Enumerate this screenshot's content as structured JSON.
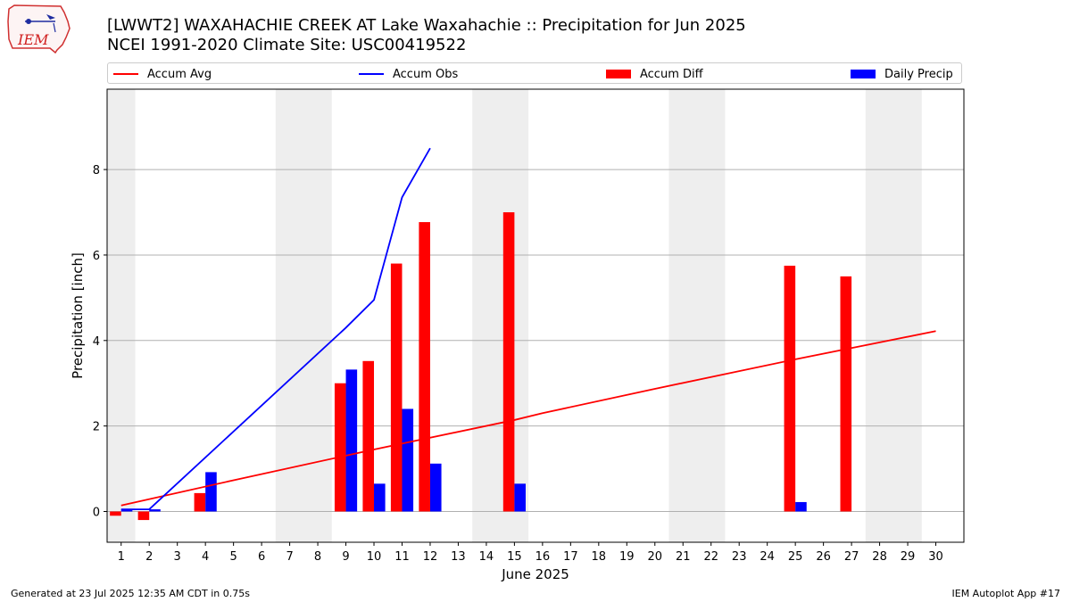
{
  "logo": {
    "text": "IEM",
    "icon": "iem-iowa-logo"
  },
  "title_line1": "[LWWT2] WAXAHACHIE CREEK  AT Lake Waxahachie :: Precipitation for Jun 2025",
  "title_line2": "NCEI 1991-2020 Climate Site: USC00419522",
  "legend": {
    "items": [
      {
        "label": "Accum Avg",
        "kind": "line",
        "color": "#ff0000"
      },
      {
        "label": "Accum Obs",
        "kind": "line",
        "color": "#0000ff"
      },
      {
        "label": "Accum Diff",
        "kind": "bar",
        "color": "#ff0000"
      },
      {
        "label": "Daily Precip",
        "kind": "bar",
        "color": "#0000ff"
      }
    ]
  },
  "footer_left": "Generated at 23 Jul 2025 12:35 AM CDT in 0.75s",
  "footer_right": "IEM Autoplot App #17",
  "chart_data": {
    "type": "bar",
    "xlabel": "June 2025",
    "ylabel": "Precipitation [inch]",
    "xlim": [
      0.5,
      31
    ],
    "ylim": [
      -0.72,
      9.88
    ],
    "x_ticks": [
      1,
      2,
      3,
      4,
      5,
      6,
      7,
      8,
      9,
      10,
      11,
      12,
      13,
      14,
      15,
      16,
      17,
      18,
      19,
      20,
      21,
      22,
      23,
      24,
      25,
      26,
      27,
      28,
      29,
      30
    ],
    "y_ticks": [
      0,
      2,
      4,
      6,
      8
    ],
    "grid": "horizontal",
    "weekend_shading": [
      [
        0.5,
        1.5
      ],
      [
        6.5,
        8.5
      ],
      [
        13.5,
        15.5
      ],
      [
        20.5,
        22.5
      ],
      [
        27.5,
        29.5
      ]
    ],
    "series": [
      {
        "name": "Accum Avg",
        "kind": "line",
        "color": "#ff0000",
        "x": [
          1,
          5,
          10,
          15,
          16,
          20,
          25,
          30
        ],
        "y": [
          0.14,
          0.73,
          1.45,
          2.14,
          2.3,
          2.87,
          3.56,
          4.22
        ]
      },
      {
        "name": "Accum Obs",
        "kind": "line",
        "color": "#0000ff",
        "x": [
          1,
          2,
          9,
          10,
          11,
          12
        ],
        "y": [
          0.05,
          0.05,
          4.3,
          4.95,
          7.35,
          8.5
        ]
      },
      {
        "name": "Accum Diff",
        "kind": "bar",
        "color": "#ff0000",
        "x": [
          1,
          2,
          4,
          9,
          10,
          11,
          12,
          15,
          25,
          27
        ],
        "y": [
          -0.1,
          -0.2,
          0.43,
          3.0,
          3.52,
          5.8,
          6.77,
          7.0,
          5.75,
          5.5
        ]
      },
      {
        "name": "Daily Precip",
        "kind": "bar",
        "color": "#0000ff",
        "x": [
          1,
          2,
          4,
          9,
          10,
          11,
          12,
          15,
          25
        ],
        "y": [
          0.05,
          0.05,
          0.92,
          3.32,
          0.65,
          2.4,
          1.12,
          0.65,
          0.22
        ]
      }
    ]
  }
}
